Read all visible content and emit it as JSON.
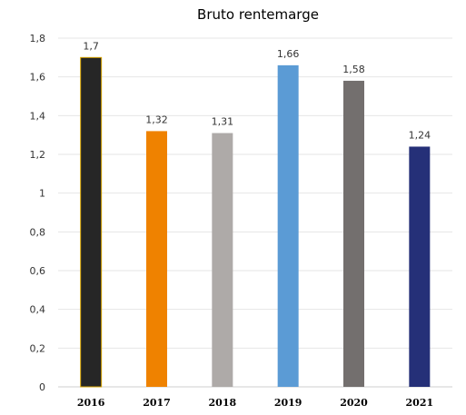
{
  "chart_data": {
    "type": "bar",
    "title": "Bruto rentemarge",
    "categories": [
      "2016",
      "2017",
      "2018",
      "2019",
      "2020",
      "2021"
    ],
    "values": [
      1.7,
      1.32,
      1.31,
      1.66,
      1.58,
      1.24
    ],
    "data_labels": [
      "1,7",
      "1,32",
      "1,31",
      "1,66",
      "1,58",
      "1,24"
    ],
    "colors": [
      "#262626",
      "#ef8200",
      "#aeaaa8",
      "#5b9bd5",
      "#736f6e",
      "#253078"
    ],
    "ylim": [
      0,
      1.8
    ],
    "yticks": [
      0,
      0.2,
      0.4,
      0.6,
      0.8,
      1,
      1.2,
      1.4,
      1.6,
      1.8
    ],
    "ytick_labels": [
      "0",
      "0,2",
      "0,4",
      "0,6",
      "0,8",
      "1",
      "1,2",
      "1,4",
      "1,6",
      "1,8"
    ],
    "xlabel": "",
    "ylabel": "",
    "grid": true,
    "legend": "none"
  }
}
